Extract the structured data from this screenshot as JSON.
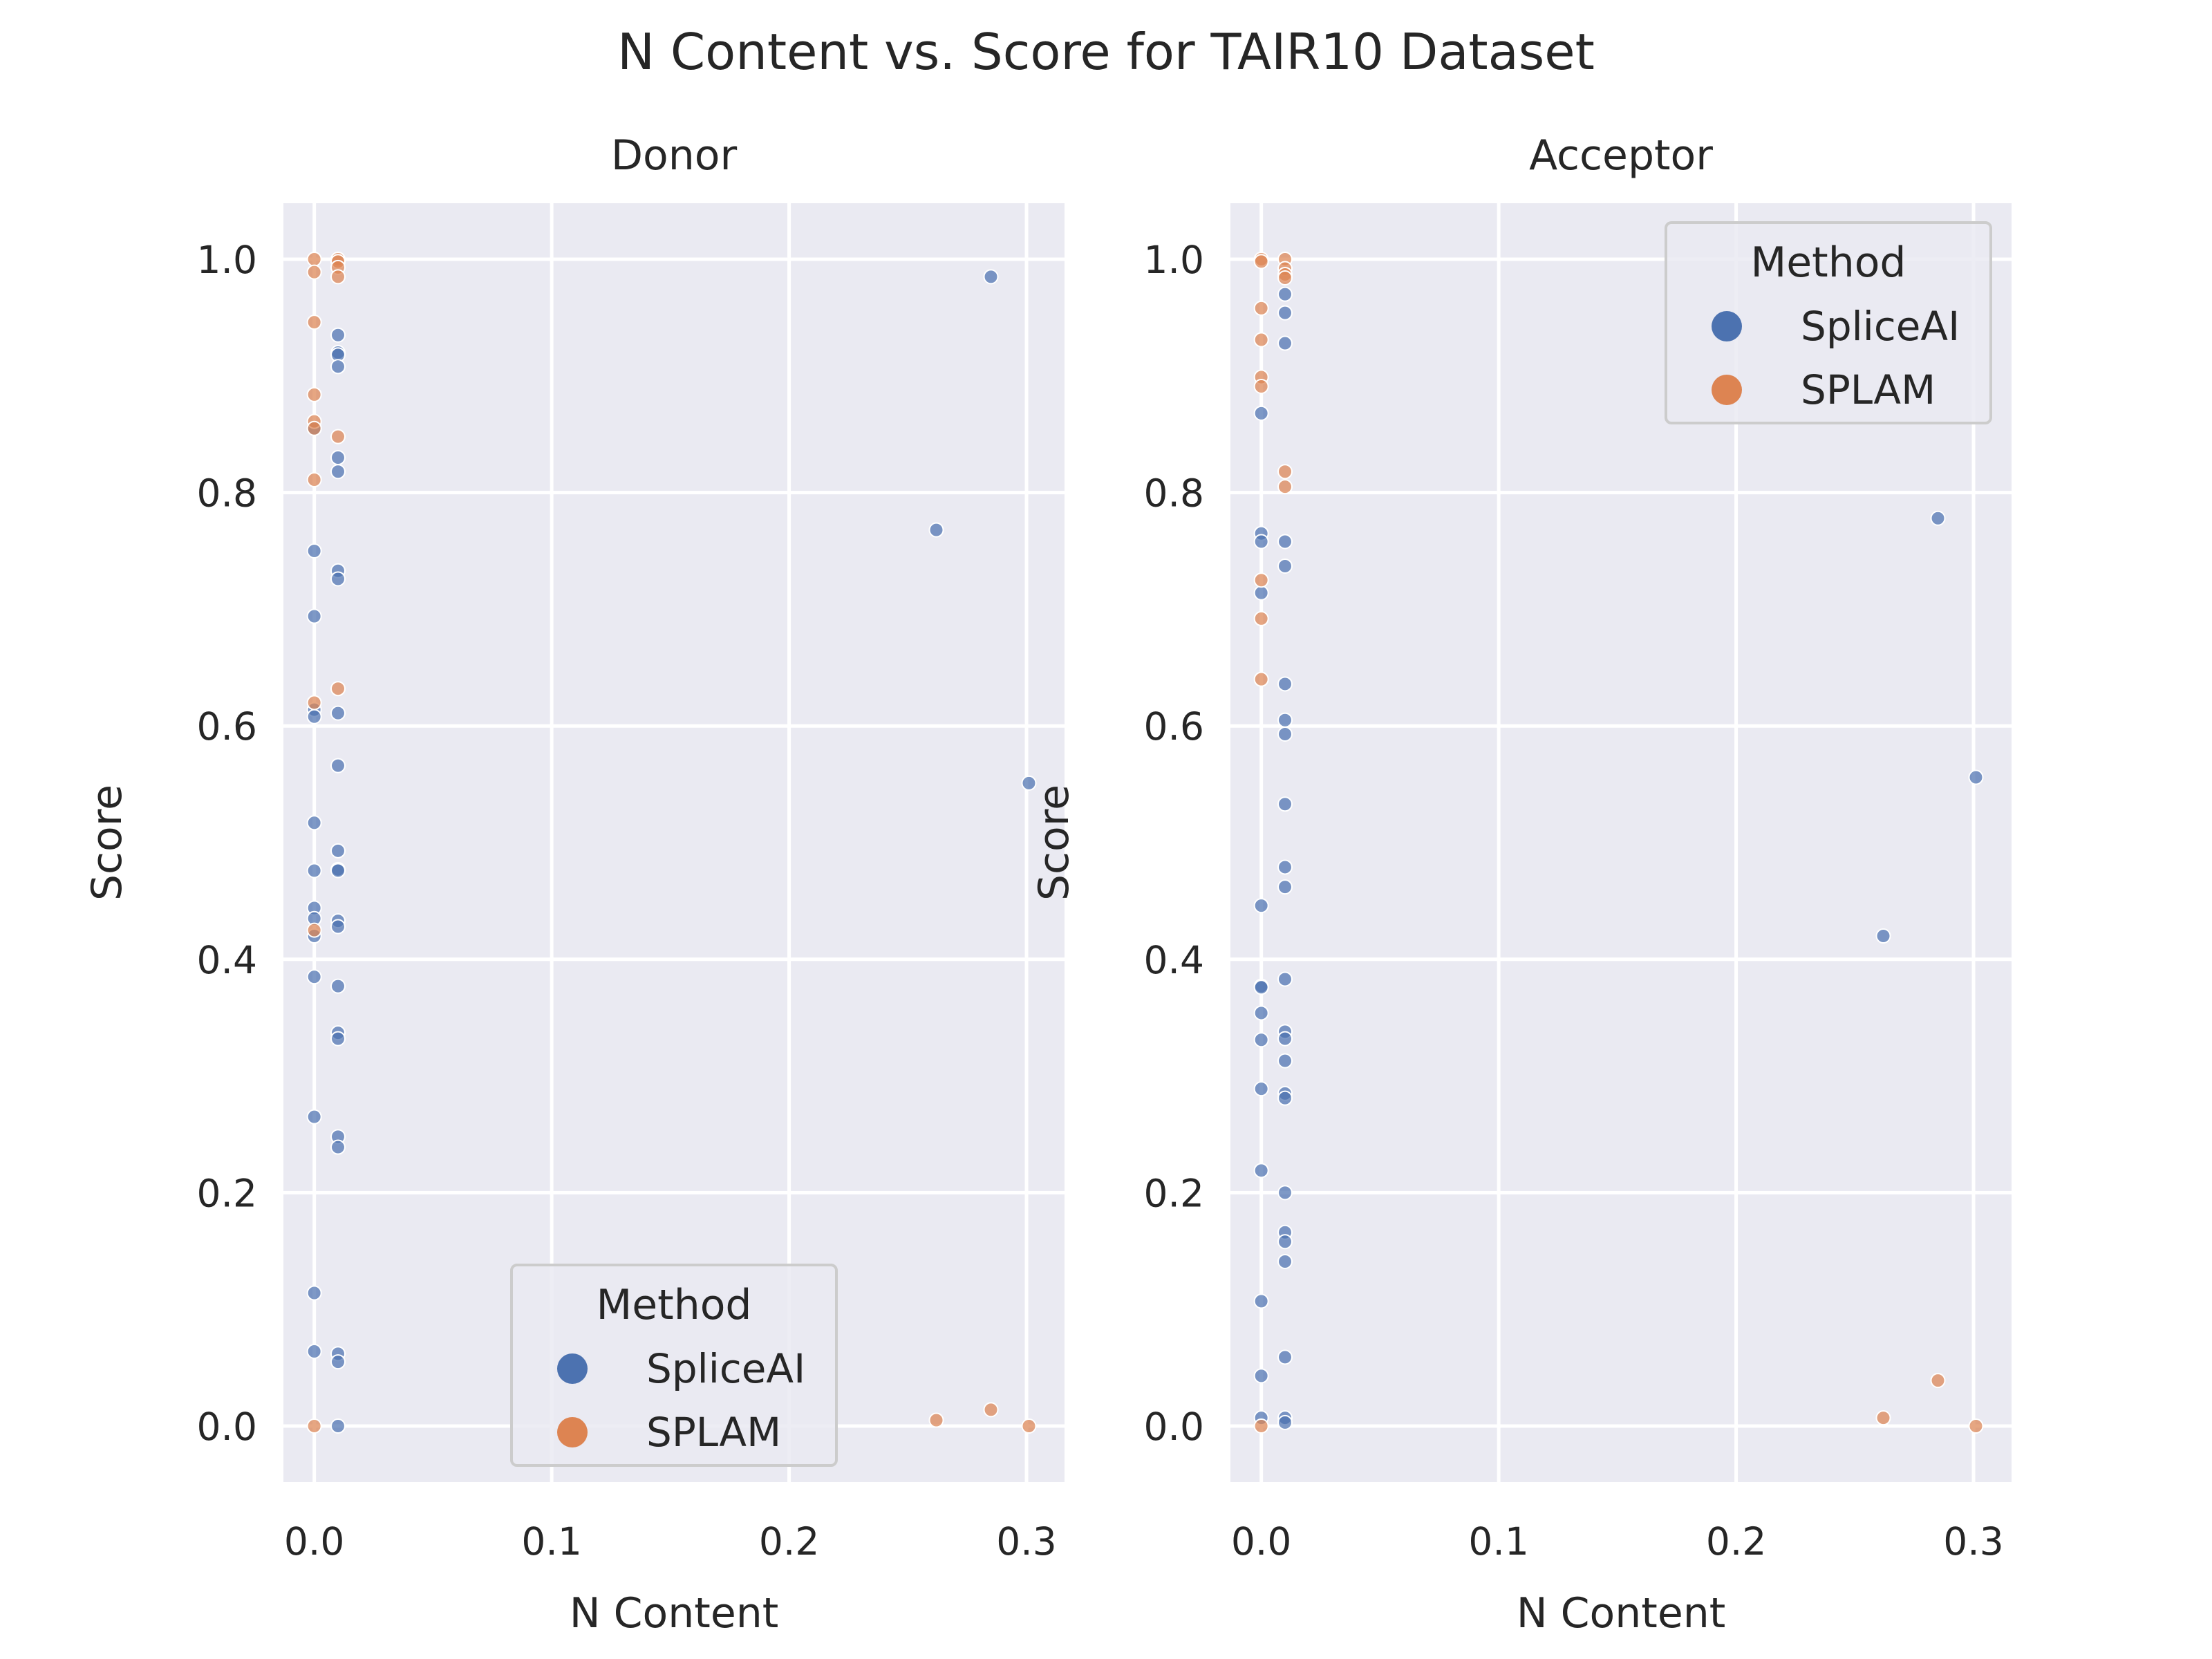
{
  "figure": {
    "title": "N Content vs. Score for TAIR10 Dataset"
  },
  "colors": {
    "SpliceAI": "#4c72b0",
    "SPLAM": "#dd8452",
    "panel_background": "#eaeaf2",
    "grid": "#ffffff",
    "text": "#262626"
  },
  "chart_data": [
    {
      "type": "scatter",
      "title": "Donor",
      "xlabel": "N Content",
      "ylabel": "Score",
      "xlim": [
        -0.013,
        0.316
      ],
      "ylim": [
        -0.048,
        1.048
      ],
      "xticks": [
        0.0,
        0.1,
        0.2,
        0.3
      ],
      "xtick_labels": [
        "0.0",
        "0.1",
        "0.2",
        "0.3"
      ],
      "yticks": [
        0.0,
        0.2,
        0.4,
        0.6,
        0.8,
        1.0
      ],
      "ytick_labels": [
        "0.0",
        "0.2",
        "0.4",
        "0.6",
        "0.8",
        "1.0"
      ],
      "grid": true,
      "legend": {
        "title": "Method",
        "position": "lower-center",
        "entries": [
          "SpliceAI",
          "SPLAM"
        ]
      },
      "series": [
        {
          "name": "SpliceAI",
          "points": [
            [
              0.0,
              0.855
            ],
            [
              0.0,
              0.75
            ],
            [
              0.0,
              0.694
            ],
            [
              0.0,
              0.614
            ],
            [
              0.0,
              0.608
            ],
            [
              0.0,
              0.517
            ],
            [
              0.0,
              0.476
            ],
            [
              0.0,
              0.444
            ],
            [
              0.0,
              0.435
            ],
            [
              0.0,
              0.42
            ],
            [
              0.0,
              0.385
            ],
            [
              0.0,
              0.265
            ],
            [
              0.0,
              0.114
            ],
            [
              0.0,
              0.064
            ],
            [
              0.01,
              0.935
            ],
            [
              0.01,
              0.92
            ],
            [
              0.01,
              0.918
            ],
            [
              0.01,
              0.908
            ],
            [
              0.01,
              0.83
            ],
            [
              0.01,
              0.818
            ],
            [
              0.01,
              0.733
            ],
            [
              0.01,
              0.726
            ],
            [
              0.01,
              0.611
            ],
            [
              0.01,
              0.566
            ],
            [
              0.01,
              0.493
            ],
            [
              0.01,
              0.477
            ],
            [
              0.01,
              0.476
            ],
            [
              0.01,
              0.433
            ],
            [
              0.01,
              0.428
            ],
            [
              0.01,
              0.377
            ],
            [
              0.01,
              0.337
            ],
            [
              0.01,
              0.332
            ],
            [
              0.01,
              0.248
            ],
            [
              0.01,
              0.239
            ],
            [
              0.01,
              0.062
            ],
            [
              0.01,
              0.055
            ],
            [
              0.01,
              0.0
            ],
            [
              0.262,
              0.768
            ],
            [
              0.285,
              0.985
            ],
            [
              0.301,
              0.551
            ]
          ]
        },
        {
          "name": "SPLAM",
          "points": [
            [
              0.0,
              1.0
            ],
            [
              0.0,
              0.989
            ],
            [
              0.0,
              0.946
            ],
            [
              0.0,
              0.884
            ],
            [
              0.0,
              0.861
            ],
            [
              0.0,
              0.855
            ],
            [
              0.0,
              0.811
            ],
            [
              0.0,
              0.62
            ],
            [
              0.0,
              0.425
            ],
            [
              0.0,
              0.0
            ],
            [
              0.01,
              1.0
            ],
            [
              0.01,
              0.998
            ],
            [
              0.01,
              0.993
            ],
            [
              0.01,
              0.985
            ],
            [
              0.01,
              0.848
            ],
            [
              0.01,
              0.632
            ],
            [
              0.262,
              0.005
            ],
            [
              0.285,
              0.014
            ],
            [
              0.301,
              0.0
            ]
          ]
        }
      ]
    },
    {
      "type": "scatter",
      "title": "Acceptor",
      "xlabel": "N Content",
      "ylabel": "Score",
      "xlim": [
        -0.013,
        0.316
      ],
      "ylim": [
        -0.048,
        1.048
      ],
      "xticks": [
        0.0,
        0.1,
        0.2,
        0.3
      ],
      "xtick_labels": [
        "0.0",
        "0.1",
        "0.2",
        "0.3"
      ],
      "yticks": [
        0.0,
        0.2,
        0.4,
        0.6,
        0.8,
        1.0
      ],
      "ytick_labels": [
        "0.0",
        "0.2",
        "0.4",
        "0.6",
        "0.8",
        "1.0"
      ],
      "grid": true,
      "legend": {
        "title": "Method",
        "position": "top-right",
        "entries": [
          "SpliceAI",
          "SPLAM"
        ]
      },
      "series": [
        {
          "name": "SpliceAI",
          "points": [
            [
              0.0,
              0.868
            ],
            [
              0.0,
              0.765
            ],
            [
              0.0,
              0.758
            ],
            [
              0.0,
              0.714
            ],
            [
              0.0,
              0.446
            ],
            [
              0.0,
              0.377
            ],
            [
              0.0,
              0.376
            ],
            [
              0.0,
              0.354
            ],
            [
              0.0,
              0.331
            ],
            [
              0.0,
              0.289
            ],
            [
              0.0,
              0.219
            ],
            [
              0.0,
              0.107
            ],
            [
              0.0,
              0.043
            ],
            [
              0.0,
              0.007
            ],
            [
              0.01,
              0.97
            ],
            [
              0.01,
              0.954
            ],
            [
              0.01,
              0.928
            ],
            [
              0.01,
              0.758
            ],
            [
              0.01,
              0.737
            ],
            [
              0.01,
              0.636
            ],
            [
              0.01,
              0.605
            ],
            [
              0.01,
              0.593
            ],
            [
              0.01,
              0.533
            ],
            [
              0.01,
              0.479
            ],
            [
              0.01,
              0.462
            ],
            [
              0.01,
              0.383
            ],
            [
              0.01,
              0.338
            ],
            [
              0.01,
              0.332
            ],
            [
              0.01,
              0.313
            ],
            [
              0.01,
              0.285
            ],
            [
              0.01,
              0.281
            ],
            [
              0.01,
              0.2
            ],
            [
              0.01,
              0.166
            ],
            [
              0.01,
              0.158
            ],
            [
              0.01,
              0.141
            ],
            [
              0.01,
              0.059
            ],
            [
              0.01,
              0.007
            ],
            [
              0.01,
              0.003
            ],
            [
              0.262,
              0.42
            ],
            [
              0.285,
              0.778
            ],
            [
              0.301,
              0.556
            ]
          ]
        },
        {
          "name": "SPLAM",
          "points": [
            [
              0.0,
              1.0
            ],
            [
              0.0,
              0.998
            ],
            [
              0.0,
              0.958
            ],
            [
              0.0,
              0.931
            ],
            [
              0.0,
              0.899
            ],
            [
              0.0,
              0.891
            ],
            [
              0.0,
              0.725
            ],
            [
              0.0,
              0.692
            ],
            [
              0.0,
              0.64
            ],
            [
              0.0,
              0.0
            ],
            [
              0.01,
              1.0
            ],
            [
              0.01,
              0.992
            ],
            [
              0.01,
              0.987
            ],
            [
              0.01,
              0.984
            ],
            [
              0.01,
              0.818
            ],
            [
              0.01,
              0.805
            ],
            [
              0.262,
              0.007
            ],
            [
              0.285,
              0.039
            ],
            [
              0.301,
              0.0
            ]
          ]
        }
      ]
    }
  ]
}
